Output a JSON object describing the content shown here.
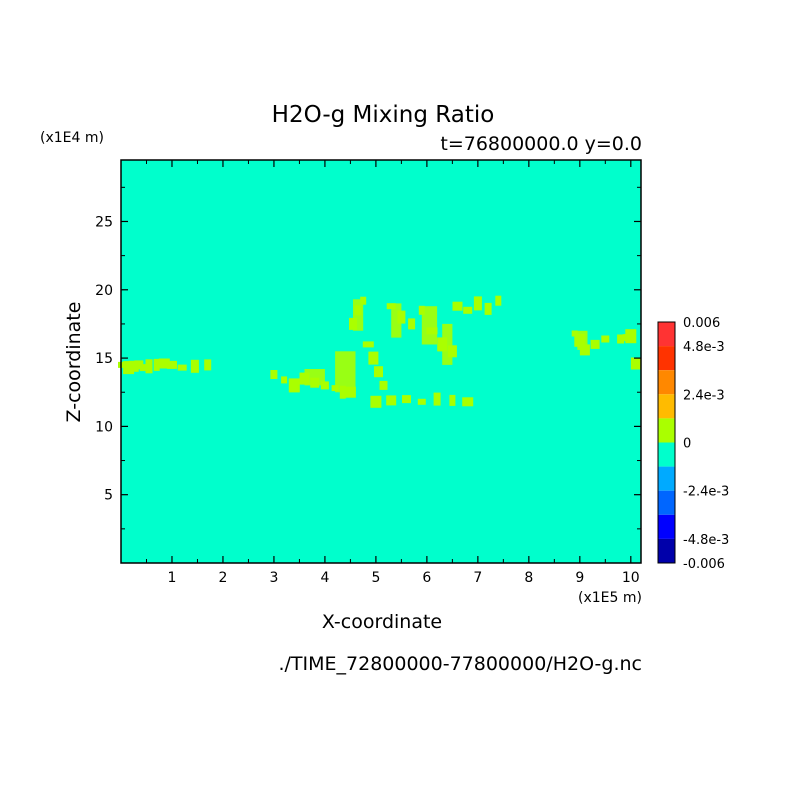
{
  "chart_data": {
    "type": "heatmap",
    "title": "H2O-g Mixing Ratio",
    "subtitle": "t=76800000.0 y=0.0",
    "xlabel": "X-coordinate",
    "ylabel": "Z-coordinate",
    "x_scale_label": "(x1E5 m)",
    "y_scale_label": "(x1E4 m)",
    "xlim": [
      0,
      10.2
    ],
    "ylim": [
      0,
      29.5
    ],
    "x_ticks": [
      1,
      2,
      3,
      4,
      5,
      6,
      7,
      8,
      9,
      10
    ],
    "y_ticks": [
      5,
      10,
      15,
      20,
      25
    ],
    "background_level_color": "#00ffcc",
    "colorbar": {
      "labels": [
        "0.006",
        "4.8e-3",
        "2.4e-3",
        "0",
        "-2.4e-3",
        "-4.8e-3",
        "-0.006"
      ],
      "label_values": [
        0.006,
        0.0048,
        0.0024,
        0,
        -0.0024,
        -0.0048,
        -0.006
      ],
      "range": [
        -0.006,
        0.006
      ],
      "colors_top_to_bottom": [
        "#ff3333",
        "#ff3300",
        "#ff8800",
        "#ffbb00",
        "#aaff00",
        "#00ffcc",
        "#00aaff",
        "#0066ff",
        "#0000ff",
        "#0000aa"
      ]
    },
    "anomaly_regions": [
      {
        "x": [
          0.0,
          0.15,
          0.25,
          0.35,
          0.45,
          0.55,
          0.7,
          0.85,
          1.0,
          1.2,
          1.45,
          1.7
        ],
        "z": [
          14.5,
          14.3,
          14.4,
          14.5,
          14.3,
          14.4,
          14.5,
          14.6,
          14.5,
          14.3,
          14.4,
          14.5
        ]
      },
      {
        "x": [
          3.0,
          3.2,
          3.4,
          3.6,
          3.8,
          4.0,
          4.2,
          4.35,
          4.5
        ],
        "z": [
          13.8,
          13.4,
          13.0,
          13.5,
          13.2,
          13.0,
          12.8,
          12.5,
          12.5
        ]
      },
      {
        "x": [
          4.55,
          4.65,
          4.75,
          4.85,
          4.95,
          5.05,
          5.15
        ],
        "z": [
          17.5,
          18.5,
          19.2,
          16.0,
          15.0,
          14.0,
          13.0
        ]
      },
      {
        "x": [
          5.3,
          5.5,
          5.7,
          5.9,
          6.1,
          6.3,
          6.5
        ],
        "z": [
          18.8,
          18.0,
          17.5,
          18.5,
          17.0,
          16.0,
          15.5
        ]
      },
      {
        "x": [
          6.6,
          6.8,
          7.0,
          7.2,
          7.4
        ],
        "z": [
          18.8,
          18.5,
          19.0,
          18.6,
          19.2
        ]
      },
      {
        "x": [
          5.0,
          5.3,
          5.6,
          5.9,
          6.2,
          6.5,
          6.8
        ],
        "z": [
          11.8,
          11.9,
          12.0,
          11.8,
          12.0,
          11.9,
          11.8
        ]
      },
      {
        "x": [
          8.9,
          9.0,
          9.1,
          9.3,
          9.5
        ],
        "z": [
          16.8,
          16.3,
          15.6,
          16.0,
          16.4
        ]
      },
      {
        "x": [
          9.8,
          9.9,
          10.0,
          10.1
        ],
        "z": [
          16.4,
          16.5,
          16.6,
          14.6
        ]
      }
    ],
    "anomaly_value": 0.0006
  },
  "footer": {
    "file_path": "./TIME_72800000-77800000/H2O-g.nc"
  }
}
